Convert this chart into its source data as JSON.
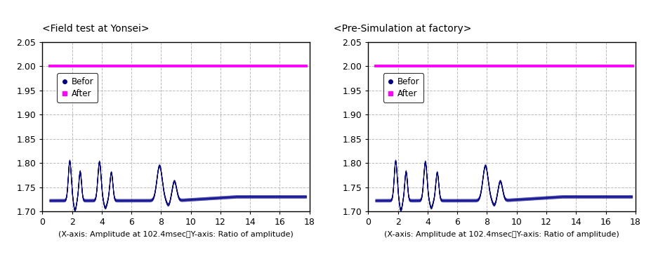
{
  "left_title": "<Field test at Yonsei>",
  "right_title": "<Pre-Simulation at factory>",
  "xlabel_note": "(X-axis: Amplitude at 102.4msec、Y-axis: Ratio of amplitude)",
  "xlim": [
    0,
    18
  ],
  "ylim": [
    1.7,
    2.05
  ],
  "yticks": [
    1.7,
    1.75,
    1.8,
    1.85,
    1.9,
    1.95,
    2.0,
    2.05
  ],
  "xticks": [
    0,
    2,
    4,
    6,
    8,
    10,
    12,
    14,
    16,
    18
  ],
  "after_y": 2.0,
  "befor_color": "#00008B",
  "after_color": "#FF00FF",
  "background_color": "#FFFFFF",
  "grid_color": "#BBBBBB",
  "legend_labels": [
    "Befor",
    "After"
  ],
  "title_fontsize": 10,
  "tick_fontsize": 9,
  "xlabel_fontsize": 8
}
